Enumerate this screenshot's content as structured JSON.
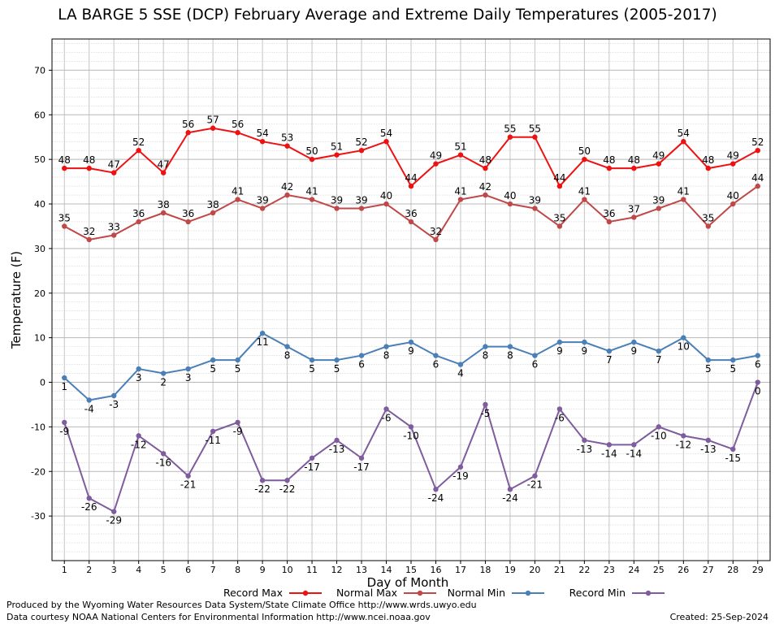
{
  "chart_data": {
    "type": "line",
    "title": "LA BARGE 5 SSE (DCP) February Average and Extreme Daily Temperatures (2005-2017)",
    "xlabel": "Day of Month",
    "ylabel": "Temperature (F)",
    "x": [
      1,
      2,
      3,
      4,
      5,
      6,
      7,
      8,
      9,
      10,
      11,
      12,
      13,
      14,
      15,
      16,
      17,
      18,
      19,
      20,
      21,
      22,
      23,
      24,
      25,
      26,
      27,
      28,
      29
    ],
    "xlim": [
      0.5,
      29.5
    ],
    "ylim": [
      -40,
      77
    ],
    "yticks": [
      -30,
      -20,
      -10,
      0,
      10,
      20,
      30,
      40,
      50,
      60,
      70
    ],
    "grid": true,
    "legend_position": "bottom",
    "series": [
      {
        "name": "Record Max",
        "color": "#ee1111",
        "values": [
          48,
          48,
          47,
          52,
          47,
          56,
          57,
          56,
          54,
          53,
          50,
          51,
          52,
          54,
          44,
          49,
          51,
          48,
          55,
          55,
          44,
          50,
          48,
          48,
          49,
          54,
          48,
          49,
          52
        ]
      },
      {
        "name": "Normal Max",
        "color": "#c04848",
        "values": [
          35,
          32,
          33,
          36,
          38,
          36,
          38,
          41,
          39,
          42,
          41,
          39,
          39,
          40,
          36,
          32,
          41,
          42,
          40,
          39,
          35,
          41,
          36,
          37,
          39,
          41,
          35,
          40,
          44
        ]
      },
      {
        "name": "Normal Min",
        "color": "#4a7fb8",
        "values": [
          1,
          -4,
          -3,
          3,
          2,
          3,
          5,
          5,
          11,
          8,
          5,
          5,
          6,
          8,
          9,
          6,
          4,
          8,
          8,
          6,
          9,
          9,
          7,
          9,
          7,
          10,
          5,
          5,
          6
        ]
      },
      {
        "name": "Record Min",
        "color": "#7e5c9e",
        "values": [
          -9,
          -26,
          -29,
          -12,
          -16,
          -21,
          -11,
          -9,
          -22,
          -22,
          -17,
          -13,
          -17,
          -6,
          -10,
          -24,
          -19,
          -5,
          -24,
          -21,
          -6,
          -13,
          -14,
          -14,
          -10,
          -12,
          -13,
          -15,
          0
        ]
      }
    ]
  },
  "footer": {
    "credit_1": "Produced by the Wyoming Water Resources Data System/State Climate Office http://www.wrds.uwyo.edu",
    "credit_2": "Data courtesy NOAA National Centers for Environmental Information http://www.ncei.noaa.gov",
    "created": "Created:  25-Sep-2024"
  }
}
